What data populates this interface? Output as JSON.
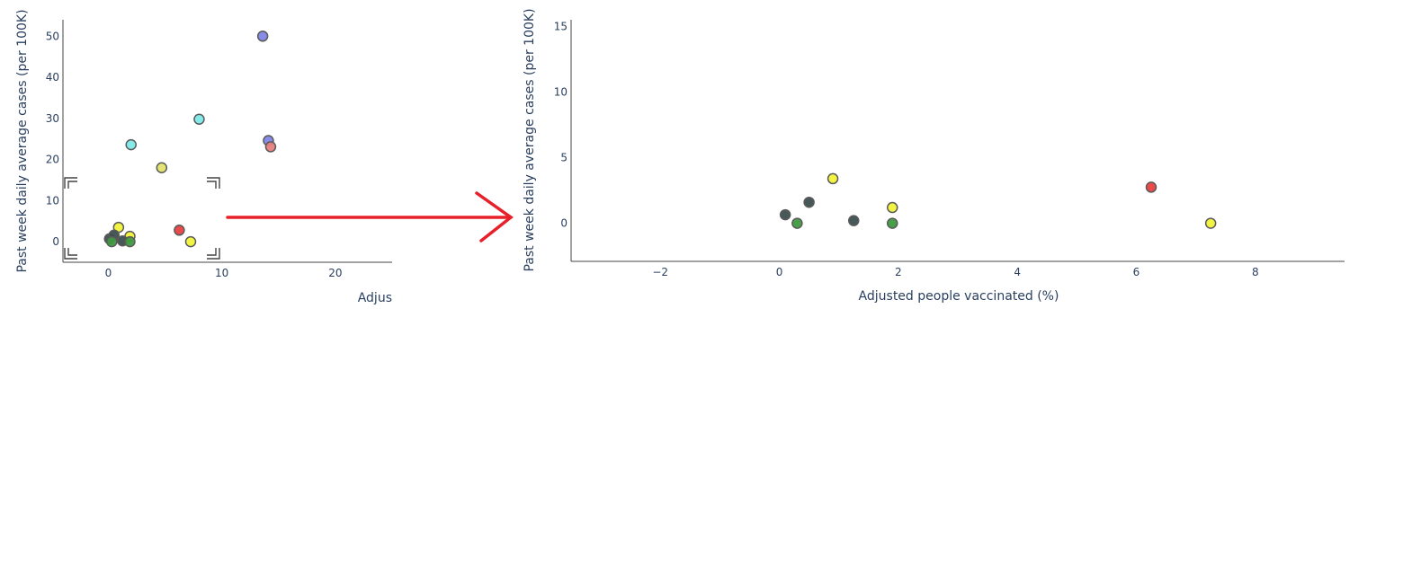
{
  "chart_data": [
    {
      "type": "scatter",
      "name": "zoom-source",
      "xlabel": "Adjus",
      "ylabel": "Past week daily average cases (per 100K)",
      "xlim": [
        -4,
        25
      ],
      "ylim": [
        -5,
        54
      ],
      "x_ticks": [
        "0",
        "10",
        "20"
      ],
      "y_ticks": [
        "0",
        "10",
        "20",
        "30",
        "40",
        "50"
      ],
      "points": [
        {
          "x": 13.6,
          "y": 50.0,
          "color": "#7f86e6"
        },
        {
          "x": 8.0,
          "y": 29.8,
          "color": "#7de8e8"
        },
        {
          "x": 2.0,
          "y": 23.6,
          "color": "#7de8e8"
        },
        {
          "x": 14.1,
          "y": 24.6,
          "color": "#7f86e6"
        },
        {
          "x": 14.3,
          "y": 23.1,
          "color": "#e88080"
        },
        {
          "x": 4.7,
          "y": 18.0,
          "color": "#e3e36a"
        },
        {
          "x": 6.25,
          "y": 2.8,
          "color": "#e84040"
        },
        {
          "x": 7.25,
          "y": 0.0,
          "color": "#f2f23a"
        },
        {
          "x": 0.9,
          "y": 3.5,
          "color": "#f2f23a"
        },
        {
          "x": 1.9,
          "y": 1.3,
          "color": "#f2f23a"
        },
        {
          "x": 0.1,
          "y": 0.7,
          "color": "#3d4f4f"
        },
        {
          "x": 0.5,
          "y": 1.6,
          "color": "#3d4f4f"
        },
        {
          "x": 1.25,
          "y": 0.2,
          "color": "#3d4f4f"
        },
        {
          "x": 0.3,
          "y": 0.0,
          "color": "#3f9a3f"
        },
        {
          "x": 1.9,
          "y": 0.0,
          "color": "#3f9a3f"
        }
      ]
    },
    {
      "type": "scatter",
      "name": "zoomed",
      "xlabel": "Adjusted people vaccinated (%)",
      "ylabel": "Past week daily average cases (per 100K)",
      "xlim": [
        -3.5,
        9.5
      ],
      "ylim": [
        -2.9,
        15.5
      ],
      "x_ticks": [
        "−2",
        "0",
        "2",
        "4",
        "6",
        "8"
      ],
      "y_ticks": [
        "0",
        "5",
        "10",
        "15"
      ],
      "points": [
        {
          "x": 0.9,
          "y": 3.4,
          "color": "#f2f23a"
        },
        {
          "x": 1.9,
          "y": 1.2,
          "color": "#f2f23a"
        },
        {
          "x": 7.25,
          "y": 0.0,
          "color": "#f2f23a"
        },
        {
          "x": 6.25,
          "y": 2.75,
          "color": "#e84040"
        },
        {
          "x": 0.1,
          "y": 0.65,
          "color": "#3d4f4f"
        },
        {
          "x": 0.5,
          "y": 1.6,
          "color": "#3d4f4f"
        },
        {
          "x": 1.25,
          "y": 0.2,
          "color": "#3d4f4f"
        },
        {
          "x": 0.3,
          "y": 0.0,
          "color": "#3f9a3f"
        },
        {
          "x": 1.9,
          "y": 0.0,
          "color": "#3f9a3f"
        }
      ]
    }
  ],
  "annotation": {
    "arrow_color": "#e8202a",
    "bracket_color": "#444444"
  }
}
